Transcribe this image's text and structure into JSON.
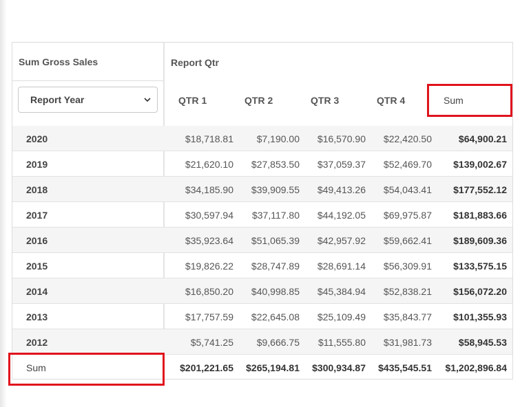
{
  "pivot": {
    "value_header": "Sum  Gross Sales",
    "column_field": "Report Qtr",
    "row_field_select": "Report Year",
    "columns": [
      "QTR 1",
      "QTR 2",
      "QTR 3",
      "QTR 4",
      "Sum"
    ],
    "rows": [
      {
        "year": "2020",
        "values": [
          "$18,718.81",
          "$7,190.00",
          "$16,570.90",
          "$22,420.50",
          "$64,900.21"
        ]
      },
      {
        "year": "2019",
        "values": [
          "$21,620.10",
          "$27,853.50",
          "$37,059.37",
          "$52,469.70",
          "$139,002.67"
        ]
      },
      {
        "year": "2018",
        "values": [
          "$34,185.90",
          "$39,909.55",
          "$49,413.26",
          "$54,043.41",
          "$177,552.12"
        ]
      },
      {
        "year": "2017",
        "values": [
          "$30,597.94",
          "$37,117.80",
          "$44,192.05",
          "$69,975.87",
          "$181,883.66"
        ]
      },
      {
        "year": "2016",
        "values": [
          "$35,923.64",
          "$51,065.39",
          "$42,957.92",
          "$59,662.41",
          "$189,609.36"
        ]
      },
      {
        "year": "2015",
        "values": [
          "$19,826.22",
          "$28,747.89",
          "$28,691.14",
          "$56,309.91",
          "$133,575.15"
        ]
      },
      {
        "year": "2014",
        "values": [
          "$16,850.20",
          "$40,998.85",
          "$45,384.94",
          "$52,838.21",
          "$156,072.20"
        ]
      },
      {
        "year": "2013",
        "values": [
          "$17,757.59",
          "$22,645.08",
          "$25,109.49",
          "$35,843.77",
          "$101,355.93"
        ]
      },
      {
        "year": "2012",
        "values": [
          "$5,741.25",
          "$9,666.75",
          "$11,555.80",
          "$31,981.73",
          "$58,945.53"
        ]
      }
    ],
    "total_row": {
      "label": "Sum",
      "values": [
        "$201,221.65",
        "$265,194.81",
        "$300,934.87",
        "$435,545.51",
        "$1,202,896.84"
      ]
    },
    "highlight_color": "#e0131c"
  }
}
